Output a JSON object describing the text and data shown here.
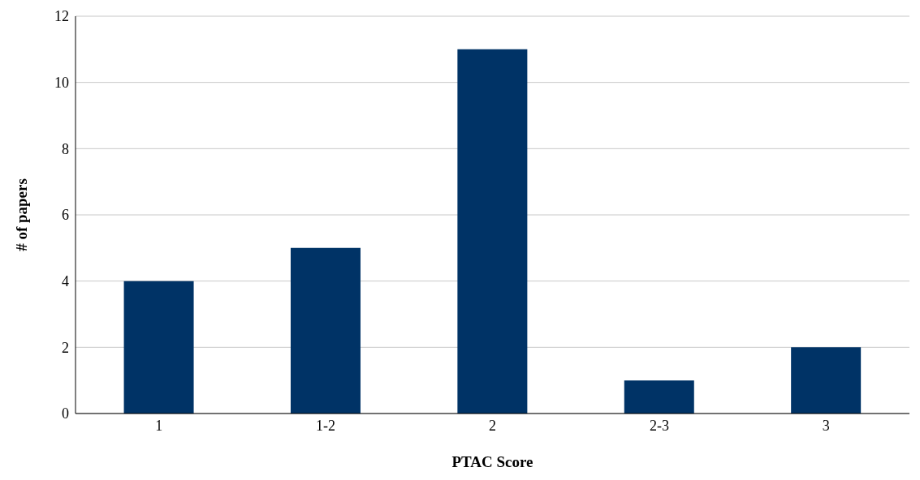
{
  "chart_data": {
    "type": "bar",
    "xlabel": "PTAC Score",
    "ylabel": "# of papers",
    "categories": [
      "1",
      "1-2",
      "2",
      "2-3",
      "3"
    ],
    "values": [
      4,
      5,
      11,
      1,
      2
    ],
    "color": "#003366",
    "ylim": [
      0,
      12
    ],
    "yticks": [
      0,
      2,
      4,
      6,
      8,
      10,
      12
    ],
    "grid": "y"
  }
}
